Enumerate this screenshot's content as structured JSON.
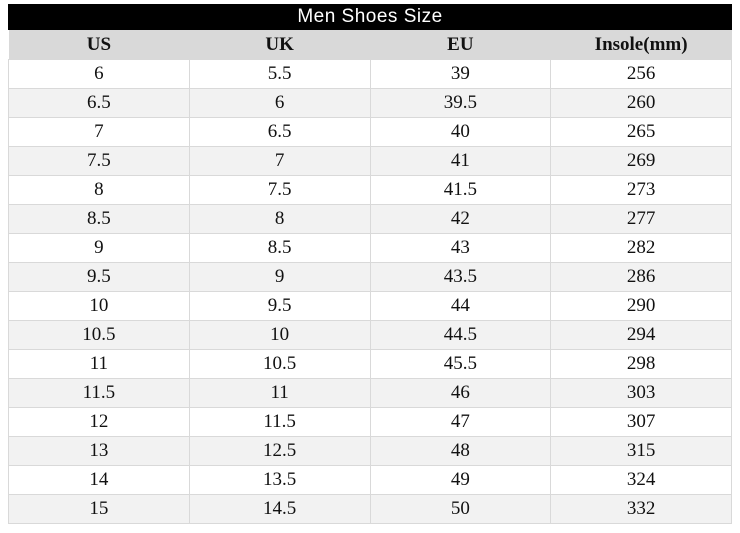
{
  "chart_data": {
    "type": "table",
    "title": "Men Shoes Size",
    "columns": [
      "US",
      "UK",
      "EU",
      "Insole(mm)"
    ],
    "rows": [
      [
        "6",
        "5.5",
        "39",
        "256"
      ],
      [
        "6.5",
        "6",
        "39.5",
        "260"
      ],
      [
        "7",
        "6.5",
        "40",
        "265"
      ],
      [
        "7.5",
        "7",
        "41",
        "269"
      ],
      [
        "8",
        "7.5",
        "41.5",
        "273"
      ],
      [
        "8.5",
        "8",
        "42",
        "277"
      ],
      [
        "9",
        "8.5",
        "43",
        "282"
      ],
      [
        "9.5",
        "9",
        "43.5",
        "286"
      ],
      [
        "10",
        "9.5",
        "44",
        "290"
      ],
      [
        "10.5",
        "10",
        "44.5",
        "294"
      ],
      [
        "11",
        "10.5",
        "45.5",
        "298"
      ],
      [
        "11.5",
        "11",
        "46",
        "303"
      ],
      [
        "12",
        "11.5",
        "47",
        "307"
      ],
      [
        "13",
        "12.5",
        "48",
        "315"
      ],
      [
        "14",
        "13.5",
        "49",
        "324"
      ],
      [
        "15",
        "14.5",
        "50",
        "332"
      ]
    ],
    "layout": {
      "grid": "on",
      "row_striping": "alternating",
      "column_alignment": "center"
    }
  },
  "colors": {
    "title_bg": "#000000",
    "title_text": "#ffffff",
    "header_bg": "#d9d9d9",
    "row_bg": "#ffffff",
    "row_alt_bg": "#f2f2f2",
    "border": "#d9d9d9",
    "cell_text": "#111111"
  }
}
